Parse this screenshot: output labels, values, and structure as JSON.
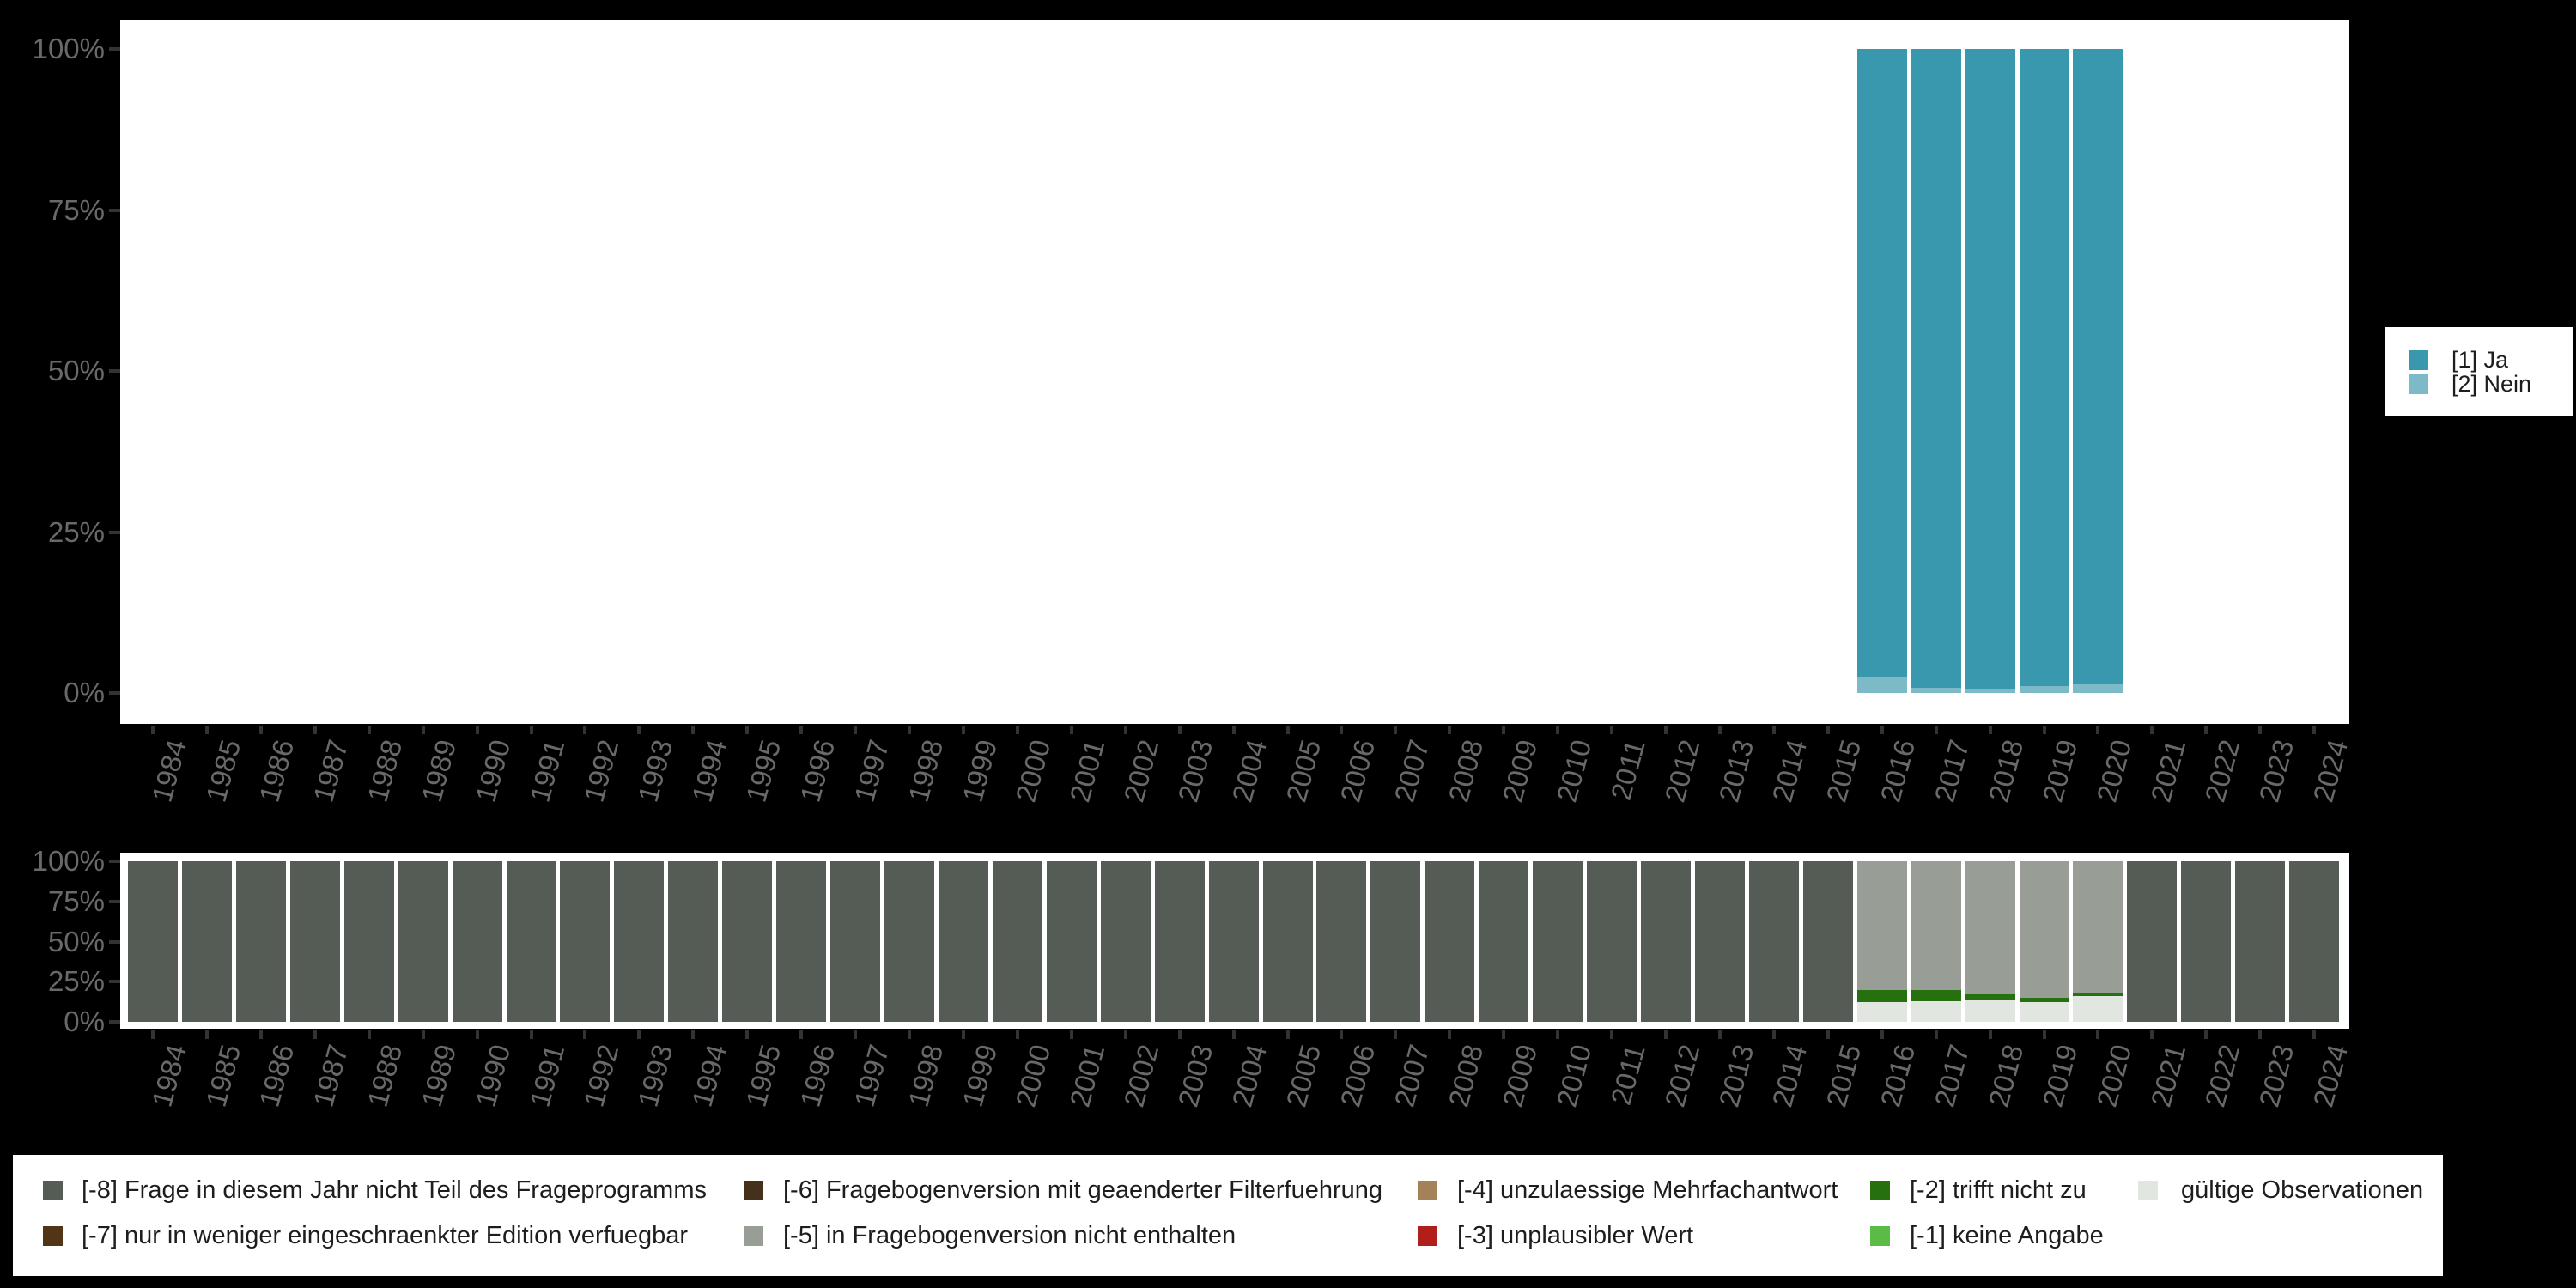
{
  "colors": {
    "background": "#000000",
    "plot_background": "#ffffff",
    "axis_text": "#696969",
    "axis_tick": "#333333",
    "legend_text": "#1d1d1d"
  },
  "chart_data": [
    {
      "id": "answer-distribution",
      "type": "bar",
      "stacked": true,
      "title": "",
      "categories": [
        "1984",
        "1985",
        "1986",
        "1987",
        "1988",
        "1989",
        "1990",
        "1991",
        "1992",
        "1993",
        "1994",
        "1995",
        "1996",
        "1997",
        "1998",
        "1999",
        "2000",
        "2001",
        "2002",
        "2003",
        "2004",
        "2005",
        "2006",
        "2007",
        "2008",
        "2009",
        "2010",
        "2011",
        "2012",
        "2013",
        "2014",
        "2015",
        "2016",
        "2017",
        "2018",
        "2019",
        "2020",
        "2021",
        "2022",
        "2023",
        "2024"
      ],
      "ytick_labels": [
        "0%",
        "25%",
        "50%",
        "75%",
        "100%"
      ],
      "ylim": [
        0,
        100
      ],
      "grid": false,
      "legend_position": "right",
      "series": [
        {
          "name": "[1] Ja",
          "color": "#3a98ae",
          "values": [
            0,
            0,
            0,
            0,
            0,
            0,
            0,
            0,
            0,
            0,
            0,
            0,
            0,
            0,
            0,
            0,
            0,
            0,
            0,
            0,
            0,
            0,
            0,
            0,
            0,
            0,
            0,
            0,
            0,
            0,
            0,
            0,
            97.5,
            99.2,
            99.3,
            98.9,
            98.7,
            0,
            0,
            0,
            0
          ]
        },
        {
          "name": "[2] Nein",
          "color": "#7cbac8",
          "values": [
            0,
            0,
            0,
            0,
            0,
            0,
            0,
            0,
            0,
            0,
            0,
            0,
            0,
            0,
            0,
            0,
            0,
            0,
            0,
            0,
            0,
            0,
            0,
            0,
            0,
            0,
            0,
            0,
            0,
            0,
            0,
            0,
            2.5,
            0.8,
            0.7,
            1.1,
            1.3,
            0,
            0,
            0,
            0
          ]
        }
      ]
    },
    {
      "id": "missing-values-distribution",
      "type": "bar",
      "stacked": true,
      "title": "",
      "categories": [
        "1984",
        "1985",
        "1986",
        "1987",
        "1988",
        "1989",
        "1990",
        "1991",
        "1992",
        "1993",
        "1994",
        "1995",
        "1996",
        "1997",
        "1998",
        "1999",
        "2000",
        "2001",
        "2002",
        "2003",
        "2004",
        "2005",
        "2006",
        "2007",
        "2008",
        "2009",
        "2010",
        "2011",
        "2012",
        "2013",
        "2014",
        "2015",
        "2016",
        "2017",
        "2018",
        "2019",
        "2020",
        "2021",
        "2022",
        "2023",
        "2024"
      ],
      "ytick_labels": [
        "0%",
        "25%",
        "50%",
        "75%",
        "100%"
      ],
      "ylim": [
        0,
        100
      ],
      "grid": false,
      "legend_position": "bottom",
      "legend_columns": [
        [
          0,
          1
        ],
        [
          2,
          3
        ],
        [
          4,
          5
        ],
        [
          6,
          7
        ],
        [
          8
        ]
      ],
      "series": [
        {
          "name": "[-8] Frage in diesem Jahr nicht Teil des Frageprogramms",
          "color": "#555c55",
          "values": [
            100,
            100,
            100,
            100,
            100,
            100,
            100,
            100,
            100,
            100,
            100,
            100,
            100,
            100,
            100,
            100,
            100,
            100,
            100,
            100,
            100,
            100,
            100,
            100,
            100,
            100,
            100,
            100,
            100,
            100,
            100,
            100,
            0,
            0,
            0,
            0,
            0,
            100,
            100,
            100,
            100
          ]
        },
        {
          "name": "[-7] nur in weniger eingeschraenkter Edition verfuegbar",
          "color": "#523517",
          "values": [
            0,
            0,
            0,
            0,
            0,
            0,
            0,
            0,
            0,
            0,
            0,
            0,
            0,
            0,
            0,
            0,
            0,
            0,
            0,
            0,
            0,
            0,
            0,
            0,
            0,
            0,
            0,
            0,
            0,
            0,
            0,
            0,
            0,
            0,
            0,
            0,
            0,
            0,
            0,
            0,
            0
          ]
        },
        {
          "name": "[-6] Fragebogenversion mit geaenderter Filterfuehrung",
          "color": "#44301b",
          "values": [
            0,
            0,
            0,
            0,
            0,
            0,
            0,
            0,
            0,
            0,
            0,
            0,
            0,
            0,
            0,
            0,
            0,
            0,
            0,
            0,
            0,
            0,
            0,
            0,
            0,
            0,
            0,
            0,
            0,
            0,
            0,
            0,
            0,
            0,
            0,
            0,
            0,
            0,
            0,
            0,
            0
          ]
        },
        {
          "name": "[-5] in Fragebogenversion nicht enthalten",
          "color": "#989e95",
          "values": [
            0,
            0,
            0,
            0,
            0,
            0,
            0,
            0,
            0,
            0,
            0,
            0,
            0,
            0,
            0,
            0,
            0,
            0,
            0,
            0,
            0,
            0,
            0,
            0,
            0,
            0,
            0,
            0,
            0,
            0,
            0,
            0,
            80.4,
            80.0,
            82.9,
            85.0,
            82.3,
            0,
            0,
            0,
            0
          ]
        },
        {
          "name": "[-4] unzulaessige Mehrfachantwort",
          "color": "#a5815a",
          "values": [
            0,
            0,
            0,
            0,
            0,
            0,
            0,
            0,
            0,
            0,
            0,
            0,
            0,
            0,
            0,
            0,
            0,
            0,
            0,
            0,
            0,
            0,
            0,
            0,
            0,
            0,
            0,
            0,
            0,
            0,
            0,
            0,
            0,
            0,
            0,
            0,
            0,
            0,
            0,
            0,
            0
          ]
        },
        {
          "name": "[-3] unplausibler Wert",
          "color": "#b01f19",
          "values": [
            0,
            0,
            0,
            0,
            0,
            0,
            0,
            0,
            0,
            0,
            0,
            0,
            0,
            0,
            0,
            0,
            0,
            0,
            0,
            0,
            0,
            0,
            0,
            0,
            0,
            0,
            0,
            0,
            0,
            0,
            0,
            0,
            0,
            0,
            0,
            0,
            0,
            0,
            0,
            0,
            0
          ]
        },
        {
          "name": "[-2] trifft nicht zu",
          "color": "#26700f",
          "values": [
            0,
            0,
            0,
            0,
            0,
            0,
            0,
            0,
            0,
            0,
            0,
            0,
            0,
            0,
            0,
            0,
            0,
            0,
            0,
            0,
            0,
            0,
            0,
            0,
            0,
            0,
            0,
            0,
            0,
            0,
            0,
            0,
            7.1,
            7.3,
            3.6,
            2.5,
            1.8,
            0,
            0,
            0,
            0
          ]
        },
        {
          "name": "[-1] keine Angabe",
          "color": "#5cba46",
          "values": [
            0,
            0,
            0,
            0,
            0,
            0,
            0,
            0,
            0,
            0,
            0,
            0,
            0,
            0,
            0,
            0,
            0,
            0,
            0,
            0,
            0,
            0,
            0,
            0,
            0,
            0,
            0,
            0,
            0,
            0,
            0,
            0,
            0,
            0,
            0,
            0,
            0,
            0,
            0,
            0,
            0
          ]
        },
        {
          "name": "gültige Observationen",
          "color": "#e1e6e0",
          "values": [
            0,
            0,
            0,
            0,
            0,
            0,
            0,
            0,
            0,
            0,
            0,
            0,
            0,
            0,
            0,
            0,
            0,
            0,
            0,
            0,
            0,
            0,
            0,
            0,
            0,
            0,
            0,
            0,
            0,
            0,
            0,
            0,
            12.5,
            12.7,
            13.5,
            12.5,
            15.9,
            0,
            0,
            0,
            0
          ]
        }
      ]
    }
  ]
}
